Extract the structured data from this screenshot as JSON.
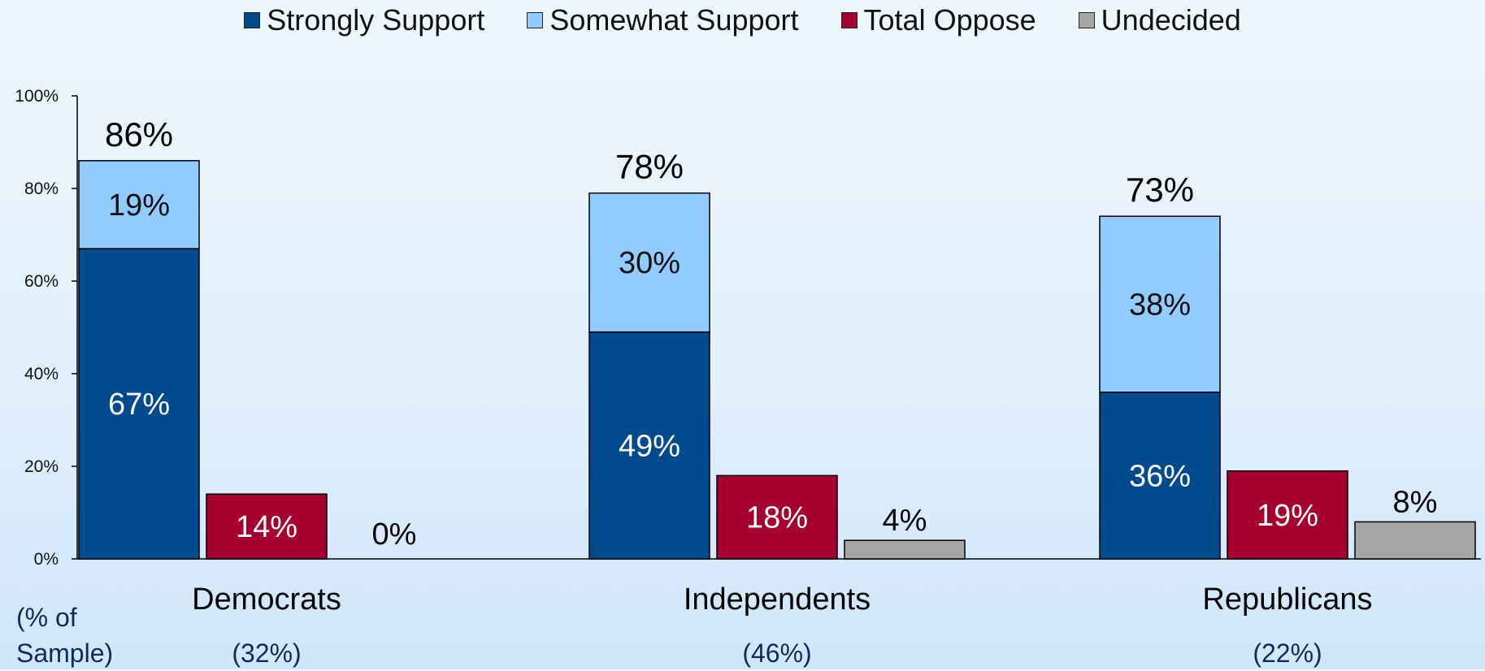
{
  "chart_data": {
    "type": "bar",
    "categories": [
      "Democrats",
      "Independents",
      "Republicans"
    ],
    "sample_shares": [
      "(32%)",
      "(46%)",
      "(22%)"
    ],
    "sample_note": [
      "(% of",
      "Sample)"
    ],
    "ylim": [
      0,
      100
    ],
    "yticks": [
      0,
      20,
      40,
      60,
      80,
      100
    ],
    "ytick_labels": [
      "0%",
      "20%",
      "40%",
      "60%",
      "80%",
      "100%"
    ],
    "legend": [
      {
        "name": "Strongly Support",
        "color": "#004b8d"
      },
      {
        "name": "Somewhat Support",
        "color": "#91cbff"
      },
      {
        "name": "Total Oppose",
        "color": "#a50030"
      },
      {
        "name": "Undecided",
        "color": "#a6a6a6"
      }
    ],
    "series": [
      {
        "name": "Strongly Support",
        "values": [
          67,
          49,
          36
        ],
        "labels": [
          "67%",
          "49%",
          "36%"
        ]
      },
      {
        "name": "Somewhat Support",
        "values": [
          19,
          30,
          38
        ],
        "labels": [
          "19%",
          "30%",
          "38%"
        ]
      },
      {
        "name": "Total Oppose",
        "values": [
          14,
          18,
          19
        ],
        "labels": [
          "14%",
          "18%",
          "19%"
        ]
      },
      {
        "name": "Undecided",
        "values": [
          0,
          4,
          8
        ],
        "labels": [
          "0%",
          "4%",
          "8%"
        ]
      }
    ],
    "total_support_labels": [
      "86%",
      "78%",
      "73%"
    ],
    "grid": false,
    "legend_position": "top-center"
  }
}
